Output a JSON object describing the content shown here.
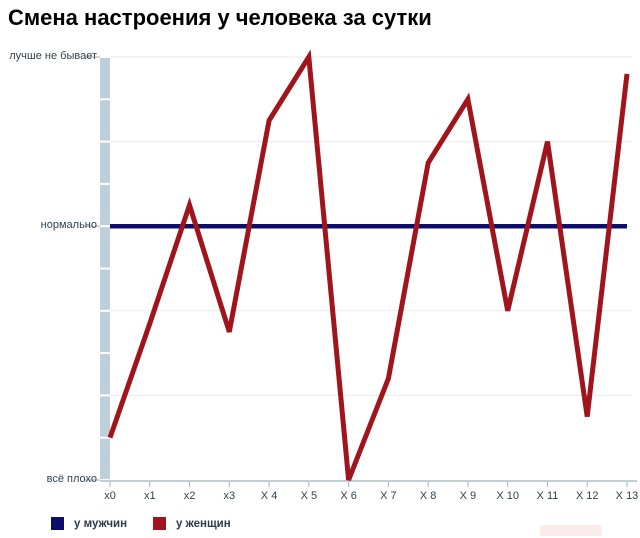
{
  "title": "Смена настроения у человека за сутки",
  "chart_data": {
    "type": "line",
    "categories": [
      "x0",
      "x1",
      "x2",
      "x3",
      "X 4",
      "X 5",
      "X 6",
      "X 7",
      "X 8",
      "X 9",
      "X 10",
      "X 11",
      "X 12",
      "X 13"
    ],
    "ylim": [
      0,
      10
    ],
    "ytick_step": 1,
    "grid": "horizontal major gridlines every 2 units, minor ticks every 1 unit on axis bar",
    "legend_position": "bottom-left",
    "yticklabels": [
      {
        "text": "всё плохо",
        "value": 0
      },
      {
        "text": "нормально",
        "value": 6
      },
      {
        "text": "лучше не бывает",
        "value": 10
      }
    ],
    "series": [
      {
        "name": "у мужчин",
        "color": "#0d0d6b",
        "values": [
          6,
          6,
          6,
          6,
          6,
          6,
          6,
          6,
          6,
          6,
          6,
          6,
          6,
          6
        ]
      },
      {
        "name": "у женщин",
        "color": "#a0151b",
        "values": [
          1,
          3.7,
          6.5,
          3.5,
          8.5,
          10,
          0,
          2.4,
          7.5,
          9,
          4,
          8,
          1.5,
          9.6
        ]
      }
    ]
  },
  "colors": {
    "axis_bar": "#bdcfda",
    "axis_bar_tick": "#ffffff",
    "grid": "#eaeaea",
    "x_axis": "#c2ced6",
    "tick": "#9fb4be",
    "label": "#33424e",
    "title": "#000000"
  }
}
